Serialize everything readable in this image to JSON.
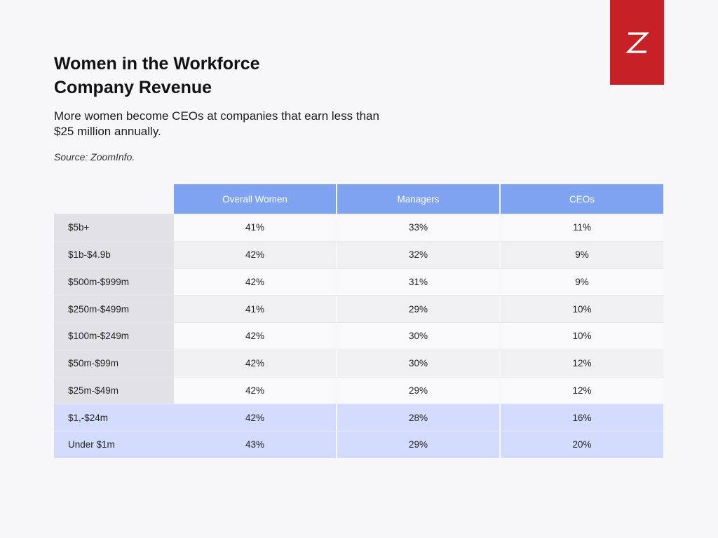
{
  "header": {
    "title_line1": "Women in the Workforce",
    "title_line2": "Company Revenue",
    "subtitle": "More women become CEOs at companies that earn less than $25 million annually.",
    "source": "Source: ZoomInfo."
  },
  "logo": {
    "icon": "zoominfo-z-logo-icon",
    "background_color": "#c62127"
  },
  "colors": {
    "header_fill": "#7fa3f0",
    "highlight_fill": "#d3dcfc",
    "label_fill": "#e2e2e6"
  },
  "chart_data": {
    "type": "table",
    "columns": [
      "Overall Women",
      "Managers",
      "CEOs"
    ],
    "rows": [
      {
        "label": "$5b+",
        "values": [
          "41%",
          "33%",
          "11%"
        ],
        "highlight": false
      },
      {
        "label": "$1b-$4.9b",
        "values": [
          "42%",
          "32%",
          "9%"
        ],
        "highlight": false
      },
      {
        "label": "$500m-$999m",
        "values": [
          "42%",
          "31%",
          "9%"
        ],
        "highlight": false
      },
      {
        "label": "$250m-$499m",
        "values": [
          "41%",
          "29%",
          "10%"
        ],
        "highlight": false
      },
      {
        "label": "$100m-$249m",
        "values": [
          "42%",
          "30%",
          "10%"
        ],
        "highlight": false
      },
      {
        "label": "$50m-$99m",
        "values": [
          "42%",
          "30%",
          "12%"
        ],
        "highlight": false
      },
      {
        "label": "$25m-$49m",
        "values": [
          "42%",
          "29%",
          "12%"
        ],
        "highlight": false
      },
      {
        "label": "$1,-$24m",
        "values": [
          "42%",
          "28%",
          "16%"
        ],
        "highlight": true
      },
      {
        "label": "Under $1m",
        "values": [
          "43%",
          "29%",
          "20%"
        ],
        "highlight": true
      }
    ]
  }
}
